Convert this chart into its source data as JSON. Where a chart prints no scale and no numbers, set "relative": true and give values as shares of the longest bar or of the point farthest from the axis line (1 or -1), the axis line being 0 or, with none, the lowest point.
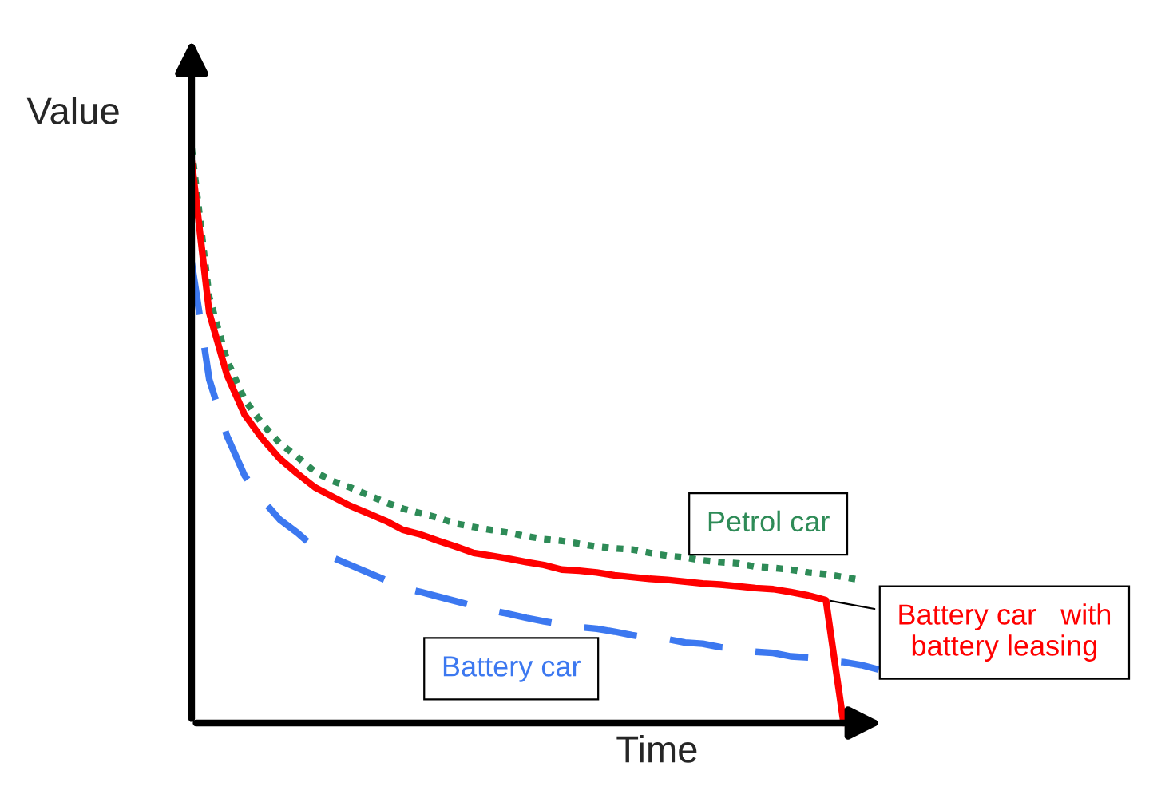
{
  "chart_data": {
    "type": "line",
    "relative": true,
    "xlabel": "Time",
    "ylabel": "Value",
    "categories": [
      null,
      null,
      null,
      null,
      null,
      null,
      null,
      null,
      null,
      null,
      null,
      null,
      null,
      null,
      null,
      null,
      null,
      null,
      null,
      null,
      null,
      null,
      null,
      null,
      null,
      null,
      null,
      null,
      null,
      null,
      null,
      null,
      null,
      null,
      null,
      null,
      null,
      null,
      null,
      null
    ],
    "series": [
      {
        "name": "Petrol car",
        "color": "#2e8b57",
        "line_style": "dotted",
        "values": [
          1.0,
          0.741,
          0.632,
          0.563,
          0.521,
          0.487,
          0.463,
          0.437,
          0.421,
          0.41,
          0.397,
          0.384,
          0.373,
          0.365,
          0.357,
          0.347,
          0.341,
          0.336,
          0.331,
          0.325,
          0.32,
          0.317,
          0.312,
          0.307,
          0.304,
          0.302,
          0.296,
          0.291,
          0.288,
          0.283,
          0.28,
          0.278,
          0.272,
          0.27,
          0.267,
          0.262,
          0.259,
          0.254,
          0.249,
          null
        ]
      },
      {
        "name": "Battery car   with\nbattery leasing",
        "color": "#ff0000",
        "line_style": "solid",
        "values": [
          0.979,
          0.714,
          0.606,
          0.537,
          0.495,
          0.46,
          0.434,
          0.41,
          0.394,
          0.378,
          0.365,
          0.352,
          0.336,
          0.328,
          0.317,
          0.307,
          0.296,
          0.291,
          0.286,
          0.28,
          0.275,
          0.267,
          0.265,
          0.262,
          0.257,
          0.254,
          0.251,
          0.249,
          0.246,
          0.243,
          0.241,
          0.238,
          0.235,
          0.233,
          0.228,
          0.222,
          0.214,
          0,
          null,
          null
        ]
      },
      {
        "name": "Battery car",
        "color": "#3c78f0",
        "line_style": "dashed",
        "values": [
          0.802,
          0.598,
          0.5,
          0.431,
          0.389,
          0.354,
          0.331,
          0.304,
          0.288,
          0.275,
          0.262,
          0.249,
          0.235,
          0.228,
          0.22,
          0.212,
          0.204,
          0.196,
          0.19,
          0.183,
          0.177,
          0.172,
          0.167,
          0.164,
          0.159,
          0.153,
          0.148,
          0.146,
          0.14,
          0.138,
          0.132,
          0.13,
          0.124,
          0.122,
          0.116,
          0.114,
          0.108,
          0.106,
          0.101,
          0.093
        ]
      }
    ]
  }
}
